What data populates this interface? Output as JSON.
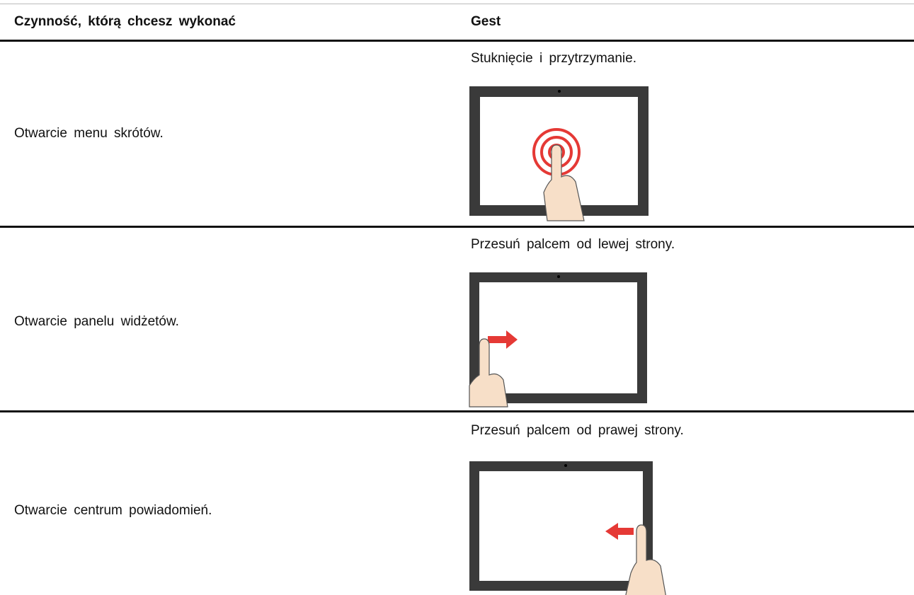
{
  "table": {
    "header": [
      "Czynność, którą chcesz wykonać",
      "Gest"
    ],
    "rows": [
      [
        "Otwarcie menu skrótów.",
        "Stuknięcie i przytrzymanie."
      ],
      [
        "Otwarcie panelu widżetów.",
        "Przesuń palcem od lewej strony."
      ],
      [
        "Otwarcie centrum powiadomień.",
        "Przesuń palcem od prawej strony."
      ]
    ]
  }
}
